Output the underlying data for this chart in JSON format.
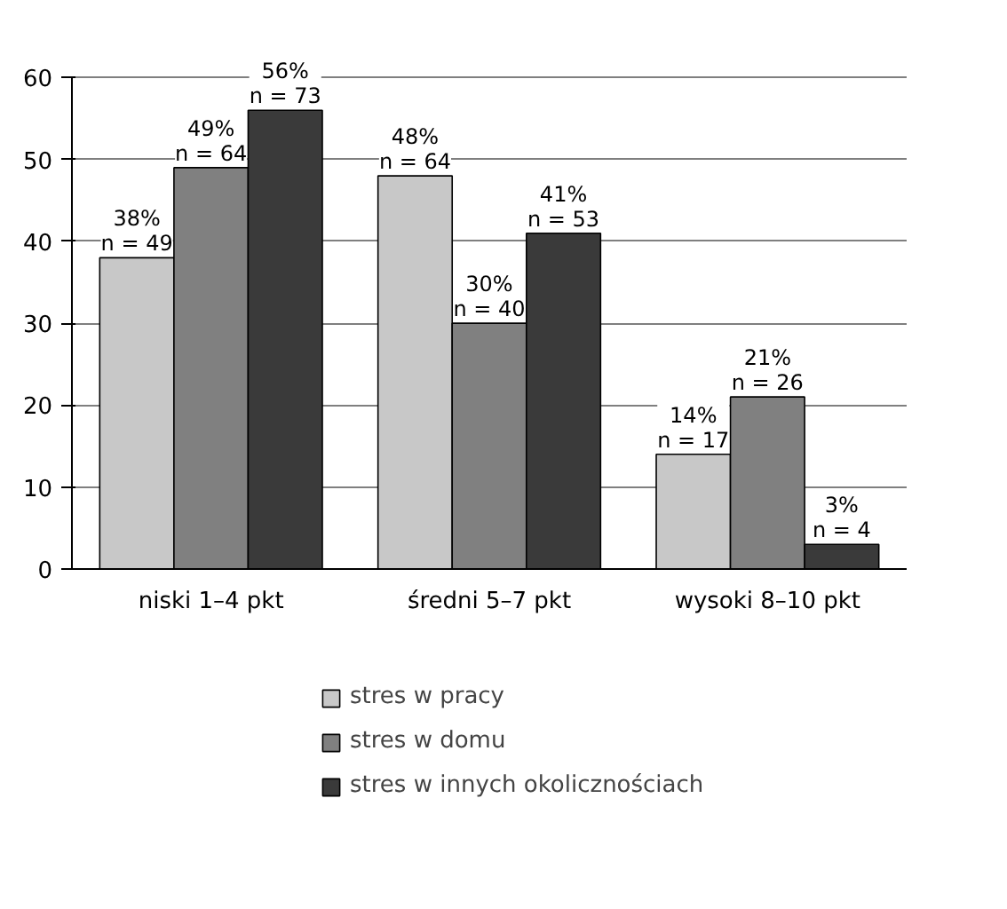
{
  "chart_data": {
    "type": "bar",
    "categories": [
      "niski 1–4 pkt",
      "średni 5–7 pkt",
      "wysoki 8–10 pkt"
    ],
    "series": [
      {
        "name": "stres w pracy",
        "color": "#c8c8c8",
        "values": [
          38,
          48,
          14
        ],
        "value_labels": [
          "38%\nn = 49",
          "48%\nn = 64",
          "14%\nn = 17"
        ]
      },
      {
        "name": "stres w domu",
        "color": "#808080",
        "values": [
          49,
          30,
          21
        ],
        "value_labels": [
          "49%\nn = 64",
          "30%\nn = 40",
          "21%\nn = 26"
        ]
      },
      {
        "name": "stres w innych okolicznościach",
        "color": "#3a3a3a",
        "values": [
          56,
          41,
          3
        ],
        "value_labels": [
          "56%\nn = 73",
          "41%\nn = 53",
          "3%\nn = 4"
        ]
      }
    ],
    "ylim": [
      0,
      60
    ],
    "yticks": [
      0,
      10,
      20,
      30,
      40,
      50,
      60
    ],
    "grid": "y",
    "legend": "bottom"
  }
}
